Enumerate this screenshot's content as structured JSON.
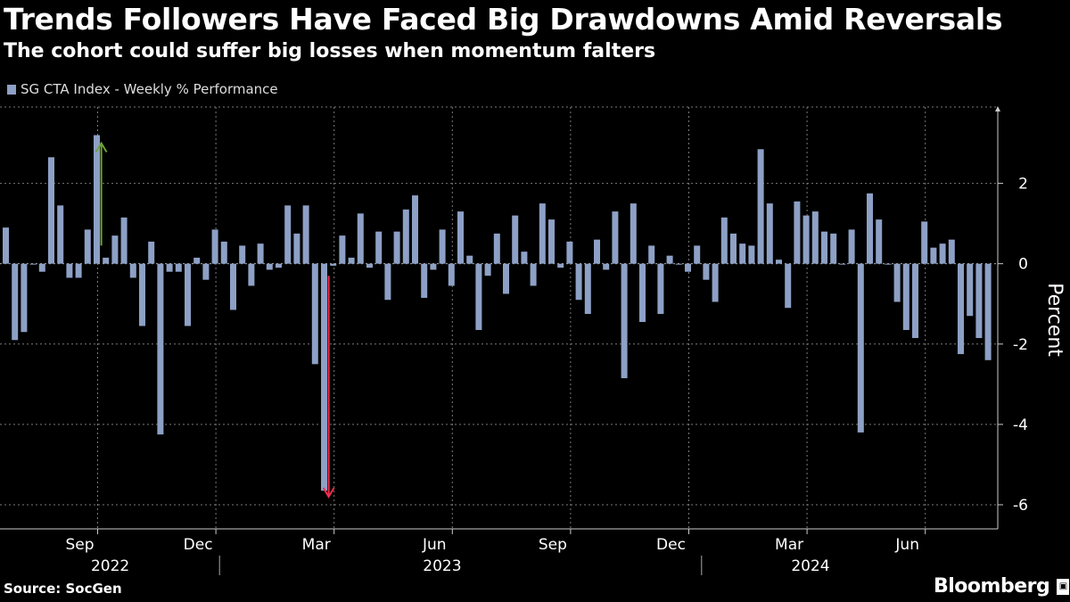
{
  "header": {
    "title": "Trends Followers Have Faced Big Drawdowns Amid Reversals",
    "subtitle": "The cohort could suffer big losses when momentum falters"
  },
  "footer": {
    "source": "Source: SocGen",
    "brand": "Bloomberg",
    "brand_icon": "bloomberg-terminal-icon"
  },
  "colors": {
    "background": "#000000",
    "bar": "#8da0c5",
    "grid": "#7a7a7a",
    "up_arrow": "#6ea23a",
    "down_arrow": "#ef2f4f"
  },
  "chart_data": {
    "type": "bar",
    "title": "Trends Followers Have Faced Big Drawdowns Amid Reversals",
    "subtitle": "The cohort could suffer big losses when momentum falters",
    "series": [
      {
        "name": "SG CTA Index - Weekly % Performance",
        "values": [
          0.9,
          -1.9,
          -1.7,
          0,
          -0.2,
          2.65,
          1.45,
          -0.35,
          -0.35,
          0.85,
          3.2,
          0.15,
          0.7,
          1.15,
          -0.35,
          -1.55,
          0.55,
          -4.25,
          -0.2,
          -0.2,
          -1.55,
          0.15,
          -0.4,
          0.85,
          0.55,
          -1.15,
          0.45,
          -0.55,
          0.5,
          -0.15,
          -0.1,
          1.45,
          0.75,
          1.45,
          -2.5,
          -5.65,
          -0.05,
          0.7,
          0.15,
          1.25,
          -0.1,
          0.8,
          -0.9,
          0.8,
          1.35,
          1.7,
          -0.85,
          -0.15,
          0.85,
          -0.55,
          1.3,
          0.2,
          -1.65,
          -0.3,
          0.75,
          -0.75,
          1.2,
          0.3,
          -0.55,
          1.5,
          1.1,
          -0.1,
          0.55,
          -0.9,
          -1.25,
          0.6,
          -0.15,
          1.3,
          -2.85,
          1.5,
          -1.45,
          0.45,
          -1.25,
          0.2,
          0,
          -0.2,
          0.45,
          -0.4,
          -0.95,
          1.15,
          0.75,
          0.5,
          0.45,
          2.85,
          1.5,
          0.1,
          -1.1,
          1.55,
          1.2,
          1.3,
          0.8,
          0.75,
          0,
          0.85,
          -4.2,
          1.75,
          1.1,
          0,
          -0.95,
          -1.65,
          -1.85,
          1.05,
          0.4,
          0.5,
          0.6,
          -2.25,
          -1.3,
          -1.85,
          -2.4
        ]
      }
    ],
    "xlabel": "",
    "ylabel": "Percent",
    "ylim": [
      -6.6,
      3.9
    ],
    "yticks": [
      -6,
      -4,
      -2,
      0,
      2
    ],
    "ytick_labels": [
      "-6",
      "-4",
      "-2",
      "0",
      "2"
    ],
    "xticks": [
      {
        "label": "Sep",
        "index": 10
      },
      {
        "label": "Dec",
        "index": 23
      },
      {
        "label": "Mar",
        "index": 36
      },
      {
        "label": "Jun",
        "index": 49
      },
      {
        "label": "Sep",
        "index": 62
      },
      {
        "label": "Dec",
        "index": 75
      },
      {
        "label": "Mar",
        "index": 88
      },
      {
        "label": "Jun",
        "index": 101
      }
    ],
    "years": [
      {
        "label": "2022",
        "index": 13
      },
      {
        "label": "2023",
        "index": 49.5
      },
      {
        "label": "2024",
        "index": 90
      }
    ],
    "year_dividers": [
      23.5,
      76.5
    ],
    "annotations": [
      {
        "type": "arrow-up",
        "index": 10.5,
        "from": 0.45,
        "to": 3.0
      },
      {
        "type": "arrow-down",
        "index": 35.5,
        "from": -0.3,
        "to": -5.8
      }
    ],
    "grid": true,
    "legend_position": "top-left"
  }
}
